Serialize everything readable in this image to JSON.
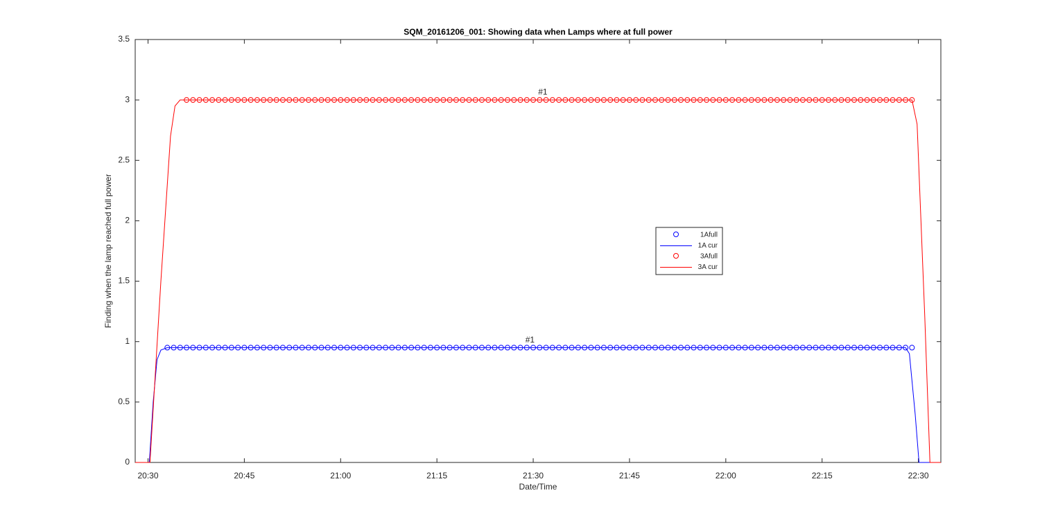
{
  "chart_data": {
    "type": "line",
    "title": "SQM_20161206_001: Showing data when Lamps where at full power",
    "xlabel": "Date/Time",
    "ylabel": "Finding when the lamp reached full power",
    "xlim": [
      1228,
      1353.5
    ],
    "xticks": [
      {
        "value": 1230,
        "label": "20:30"
      },
      {
        "value": 1245,
        "label": "20:45"
      },
      {
        "value": 1260,
        "label": "21:00"
      },
      {
        "value": 1275,
        "label": "21:15"
      },
      {
        "value": 1290,
        "label": "21:30"
      },
      {
        "value": 1305,
        "label": "21:45"
      },
      {
        "value": 1320,
        "label": "22:00"
      },
      {
        "value": 1335,
        "label": "22:15"
      },
      {
        "value": 1350,
        "label": "22:30"
      }
    ],
    "ylim": [
      0,
      3.5
    ],
    "yticks": [
      0,
      0.5,
      1,
      1.5,
      2,
      2.5,
      3,
      3.5
    ],
    "legend": true,
    "series": [
      {
        "name": "1Afull",
        "color": "#0000ff",
        "mode": "markers",
        "x": [
          1233,
          1234,
          1235,
          1236,
          1237,
          1238,
          1239,
          1240,
          1241,
          1242,
          1243,
          1244,
          1245,
          1246,
          1247,
          1248,
          1249,
          1250,
          1251,
          1252,
          1253,
          1254,
          1255,
          1256,
          1257,
          1258,
          1259,
          1260,
          1261,
          1262,
          1263,
          1264,
          1265,
          1266,
          1267,
          1268,
          1269,
          1270,
          1271,
          1272,
          1273,
          1274,
          1275,
          1276,
          1277,
          1278,
          1279,
          1280,
          1281,
          1282,
          1283,
          1284,
          1285,
          1286,
          1287,
          1288,
          1289,
          1290,
          1291,
          1292,
          1293,
          1294,
          1295,
          1296,
          1297,
          1298,
          1299,
          1300,
          1301,
          1302,
          1303,
          1304,
          1305,
          1306,
          1307,
          1308,
          1309,
          1310,
          1311,
          1312,
          1313,
          1314,
          1315,
          1316,
          1317,
          1318,
          1319,
          1320,
          1321,
          1322,
          1323,
          1324,
          1325,
          1326,
          1327,
          1328,
          1329,
          1330,
          1331,
          1332,
          1333,
          1334,
          1335,
          1336,
          1337,
          1338,
          1339,
          1340,
          1341,
          1342,
          1343,
          1344,
          1345,
          1346,
          1347,
          1348,
          1349
        ],
        "values": [
          0.95,
          0.95,
          0.95,
          0.95,
          0.95,
          0.95,
          0.95,
          0.95,
          0.95,
          0.95,
          0.95,
          0.95,
          0.95,
          0.95,
          0.95,
          0.95,
          0.95,
          0.95,
          0.95,
          0.95,
          0.95,
          0.95,
          0.95,
          0.95,
          0.95,
          0.95,
          0.95,
          0.95,
          0.95,
          0.95,
          0.95,
          0.95,
          0.95,
          0.95,
          0.95,
          0.95,
          0.95,
          0.95,
          0.95,
          0.95,
          0.95,
          0.95,
          0.95,
          0.95,
          0.95,
          0.95,
          0.95,
          0.95,
          0.95,
          0.95,
          0.95,
          0.95,
          0.95,
          0.95,
          0.95,
          0.95,
          0.95,
          0.95,
          0.95,
          0.95,
          0.95,
          0.95,
          0.95,
          0.95,
          0.95,
          0.95,
          0.95,
          0.95,
          0.95,
          0.95,
          0.95,
          0.95,
          0.95,
          0.95,
          0.95,
          0.95,
          0.95,
          0.95,
          0.95,
          0.95,
          0.95,
          0.95,
          0.95,
          0.95,
          0.95,
          0.95,
          0.95,
          0.95,
          0.95,
          0.95,
          0.95,
          0.95,
          0.95,
          0.95,
          0.95,
          0.95,
          0.95,
          0.95,
          0.95,
          0.95,
          0.95,
          0.95,
          0.95,
          0.95,
          0.95,
          0.95,
          0.95,
          0.95,
          0.95,
          0.95,
          0.95,
          0.95,
          0.95,
          0.95,
          0.95,
          0.95,
          0.95
        ]
      },
      {
        "name": "1A cur",
        "color": "#0000ff",
        "mode": "line",
        "x": [
          1228,
          1230.2,
          1230.8,
          1231.4,
          1232,
          1233,
          1348,
          1348.6,
          1349.5,
          1350.1,
          1353.5
        ],
        "values": [
          0,
          0,
          0.5,
          0.85,
          0.93,
          0.95,
          0.95,
          0.9,
          0.4,
          0,
          0
        ]
      },
      {
        "name": "3Afull",
        "color": "#ff0000",
        "mode": "markers",
        "x": [
          1236,
          1237,
          1238,
          1239,
          1240,
          1241,
          1242,
          1243,
          1244,
          1245,
          1246,
          1247,
          1248,
          1249,
          1250,
          1251,
          1252,
          1253,
          1254,
          1255,
          1256,
          1257,
          1258,
          1259,
          1260,
          1261,
          1262,
          1263,
          1264,
          1265,
          1266,
          1267,
          1268,
          1269,
          1270,
          1271,
          1272,
          1273,
          1274,
          1275,
          1276,
          1277,
          1278,
          1279,
          1280,
          1281,
          1282,
          1283,
          1284,
          1285,
          1286,
          1287,
          1288,
          1289,
          1290,
          1291,
          1292,
          1293,
          1294,
          1295,
          1296,
          1297,
          1298,
          1299,
          1300,
          1301,
          1302,
          1303,
          1304,
          1305,
          1306,
          1307,
          1308,
          1309,
          1310,
          1311,
          1312,
          1313,
          1314,
          1315,
          1316,
          1317,
          1318,
          1319,
          1320,
          1321,
          1322,
          1323,
          1324,
          1325,
          1326,
          1327,
          1328,
          1329,
          1330,
          1331,
          1332,
          1333,
          1334,
          1335,
          1336,
          1337,
          1338,
          1339,
          1340,
          1341,
          1342,
          1343,
          1344,
          1345,
          1346,
          1347,
          1348,
          1349
        ],
        "values": [
          3,
          3,
          3,
          3,
          3,
          3,
          3,
          3,
          3,
          3,
          3,
          3,
          3,
          3,
          3,
          3,
          3,
          3,
          3,
          3,
          3,
          3,
          3,
          3,
          3,
          3,
          3,
          3,
          3,
          3,
          3,
          3,
          3,
          3,
          3,
          3,
          3,
          3,
          3,
          3,
          3,
          3,
          3,
          3,
          3,
          3,
          3,
          3,
          3,
          3,
          3,
          3,
          3,
          3,
          3,
          3,
          3,
          3,
          3,
          3,
          3,
          3,
          3,
          3,
          3,
          3,
          3,
          3,
          3,
          3,
          3,
          3,
          3,
          3,
          3,
          3,
          3,
          3,
          3,
          3,
          3,
          3,
          3,
          3,
          3,
          3,
          3,
          3,
          3,
          3,
          3,
          3,
          3,
          3,
          3,
          3,
          3,
          3,
          3,
          3,
          3,
          3,
          3,
          3,
          3,
          3,
          3,
          3,
          3,
          3,
          3,
          3,
          3,
          3
        ]
      },
      {
        "name": "3A cur",
        "color": "#ff0000",
        "mode": "line",
        "x": [
          1228,
          1230.3,
          1232,
          1233.5,
          1234.2,
          1235,
          1349,
          1349.8,
          1351,
          1351.8,
          1353.5
        ],
        "values": [
          0,
          0,
          1.5,
          2.7,
          2.95,
          3,
          3,
          2.8,
          1.2,
          0,
          0
        ]
      }
    ],
    "annotations": [
      {
        "text": "#1",
        "x": 1291.5,
        "y": 3.05
      },
      {
        "text": "#1",
        "x": 1289.5,
        "y": 1.0
      }
    ]
  }
}
